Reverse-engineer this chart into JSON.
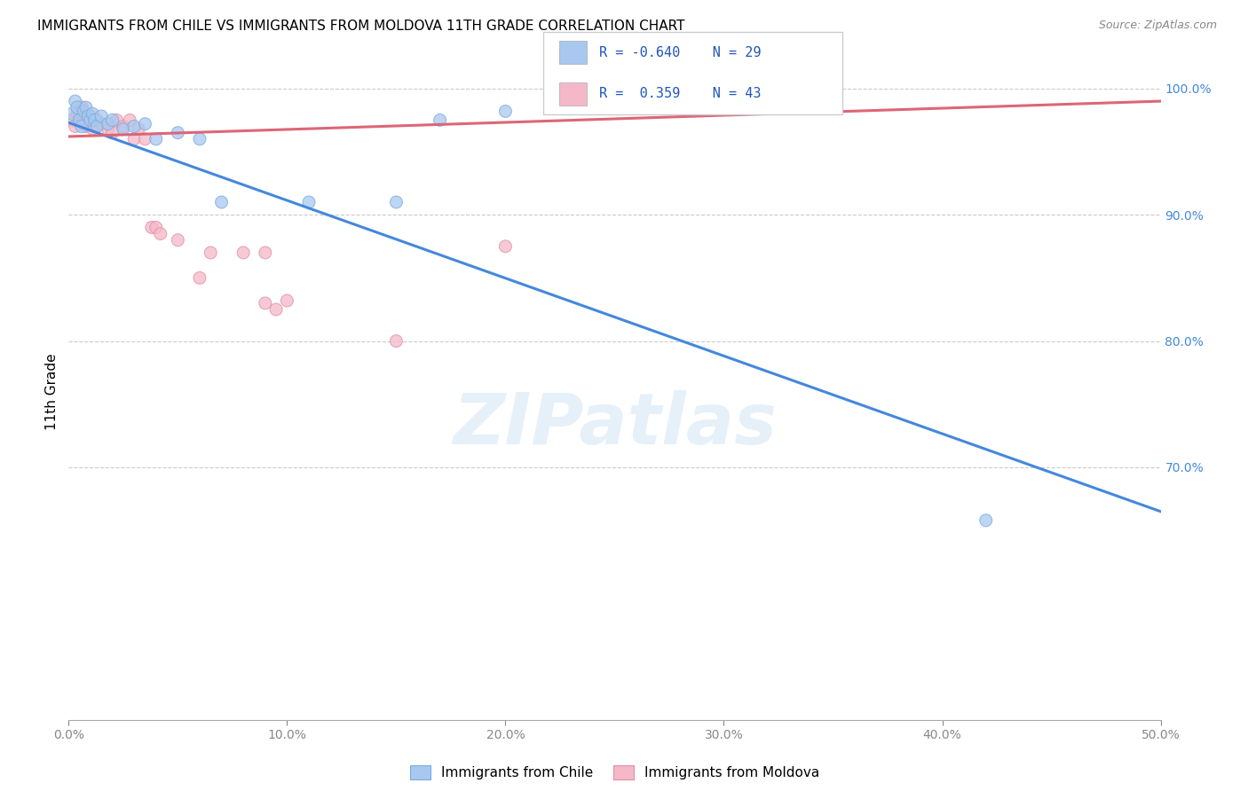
{
  "title": "IMMIGRANTS FROM CHILE VS IMMIGRANTS FROM MOLDOVA 11TH GRADE CORRELATION CHART",
  "source": "Source: ZipAtlas.com",
  "ylabel": "11th Grade",
  "xlim": [
    0.0,
    0.5
  ],
  "ylim": [
    0.5,
    1.02
  ],
  "xtick_labels": [
    "0.0%",
    "10.0%",
    "20.0%",
    "30.0%",
    "40.0%",
    "50.0%"
  ],
  "xtick_vals": [
    0.0,
    0.1,
    0.2,
    0.3,
    0.4,
    0.5
  ],
  "ytick_labels_right": [
    "100.0%",
    "90.0%",
    "80.0%",
    "70.0%"
  ],
  "ytick_vals": [
    1.0,
    0.9,
    0.8,
    0.7
  ],
  "legend_chile_R": "-0.640",
  "legend_chile_N": "29",
  "legend_moldova_R": "0.359",
  "legend_moldova_N": "43",
  "color_chile": "#a8c8f0",
  "color_moldova": "#f5b8c8",
  "color_chile_line": "#4488dd",
  "color_moldova_line": "#dd6677",
  "watermark": "ZIPatlas",
  "chile_scatter_x": [
    0.002,
    0.003,
    0.004,
    0.005,
    0.006,
    0.007,
    0.008,
    0.009,
    0.01,
    0.011,
    0.012,
    0.013,
    0.015,
    0.018,
    0.02,
    0.025,
    0.03,
    0.035,
    0.04,
    0.05,
    0.06,
    0.07,
    0.11,
    0.15,
    0.17,
    0.2,
    0.31,
    0.42
  ],
  "chile_scatter_y": [
    0.98,
    0.99,
    0.985,
    0.975,
    0.97,
    0.982,
    0.985,
    0.978,
    0.975,
    0.98,
    0.975,
    0.97,
    0.978,
    0.972,
    0.975,
    0.968,
    0.97,
    0.972,
    0.96,
    0.965,
    0.96,
    0.91,
    0.91,
    0.91,
    0.975,
    0.982,
    0.988,
    0.658
  ],
  "moldova_scatter_x": [
    0.002,
    0.003,
    0.004,
    0.005,
    0.006,
    0.007,
    0.008,
    0.009,
    0.01,
    0.011,
    0.012,
    0.013,
    0.015,
    0.018,
    0.02,
    0.022,
    0.025,
    0.028,
    0.03,
    0.032,
    0.035,
    0.038,
    0.04,
    0.042,
    0.05,
    0.06,
    0.065,
    0.08,
    0.09,
    0.09,
    0.095,
    0.1,
    0.15,
    0.2,
    0.31,
    0.315
  ],
  "moldova_scatter_y": [
    0.975,
    0.97,
    0.98,
    0.978,
    0.985,
    0.972,
    0.97,
    0.975,
    0.978,
    0.968,
    0.97,
    0.975,
    0.972,
    0.968,
    0.965,
    0.975,
    0.97,
    0.975,
    0.96,
    0.968,
    0.96,
    0.89,
    0.89,
    0.885,
    0.88,
    0.85,
    0.87,
    0.87,
    0.87,
    0.83,
    0.825,
    0.832,
    0.8,
    0.875,
    0.988,
    0.99
  ],
  "chile_dot_sizes": [
    120,
    100,
    110,
    105,
    110,
    105,
    100,
    110,
    105,
    100,
    105,
    100,
    105,
    100,
    105,
    100,
    105,
    100,
    100,
    100,
    100,
    100,
    100,
    100,
    100,
    100,
    100,
    100
  ],
  "moldova_dot_sizes": [
    120,
    100,
    110,
    105,
    110,
    105,
    100,
    110,
    105,
    100,
    105,
    100,
    105,
    100,
    105,
    100,
    105,
    100,
    100,
    100,
    100,
    100,
    100,
    100,
    100,
    100,
    100,
    100,
    100,
    100,
    100,
    100,
    100,
    100,
    100,
    100
  ],
  "chile_trendline_x": [
    0.0,
    0.5
  ],
  "chile_trendline_y": [
    0.973,
    0.665
  ],
  "moldova_trendline_x": [
    0.0,
    0.5
  ],
  "moldova_trendline_y": [
    0.962,
    0.99
  ]
}
